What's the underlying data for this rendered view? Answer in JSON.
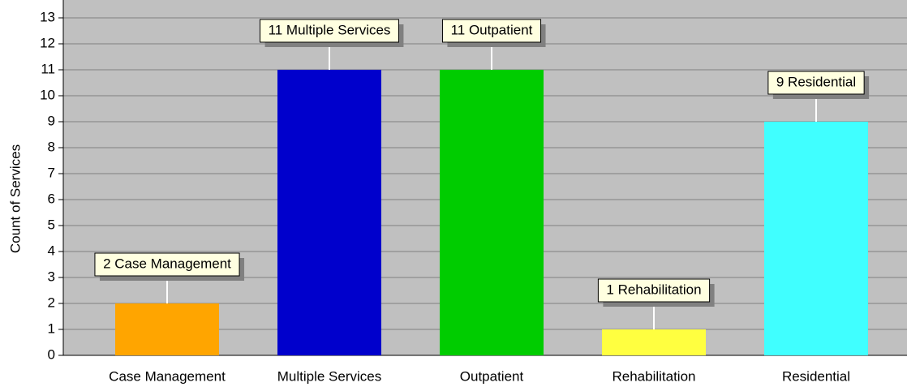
{
  "chart_data": {
    "type": "bar",
    "y_label": "Count of Services",
    "categories": [
      "Case Management",
      "Multiple Services",
      "Outpatient",
      "Rehabilitation",
      "Residential"
    ],
    "values": [
      2,
      11,
      11,
      1,
      9
    ],
    "value_labels": [
      "2 Case Management",
      "11 Multiple Services",
      "11 Outpatient",
      "1 Rehabilitation",
      "9 Residential"
    ],
    "colors": [
      "#ffa500",
      "#0000cc",
      "#00cc00",
      "#ffff40",
      "#40ffff"
    ],
    "ylim": [
      0,
      13.5
    ],
    "yticks": [
      0,
      1,
      2,
      3,
      4,
      5,
      6,
      7,
      8,
      9,
      10,
      11,
      12,
      13
    ],
    "grid": true
  }
}
